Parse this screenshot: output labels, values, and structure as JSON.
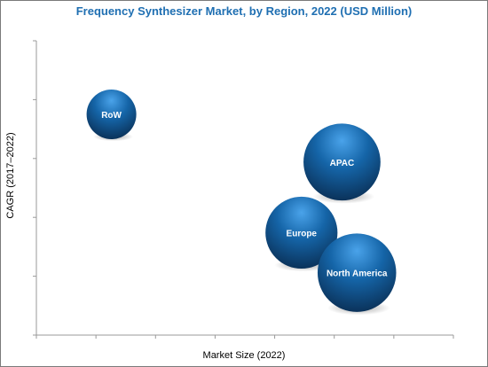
{
  "chart_data": {
    "type": "bubble",
    "title": "Frequency Synthesizer Market, by Region, 2022 (USD Million)",
    "xlabel": "Market Size (2022)",
    "ylabel": "CAGR (2017–2022)",
    "xlim": [
      0,
      7
    ],
    "ylim": [
      0,
      5
    ],
    "grid": false,
    "axis_values_shown": false,
    "colors": {
      "bubble_light": "#4aa3ea",
      "bubble_mid": "#1565a8",
      "bubble_dark": "#0a2f55",
      "title": "#1f6fb2"
    },
    "points": [
      {
        "label": "RoW",
        "x": 1.26,
        "y": 3.75,
        "size": 1.0
      },
      {
        "label": "APAC",
        "x": 5.13,
        "y": 2.94,
        "size": 2.4
      },
      {
        "label": "Europe",
        "x": 4.45,
        "y": 1.74,
        "size": 2.1
      },
      {
        "label": "North America",
        "x": 5.38,
        "y": 1.06,
        "size": 2.5
      }
    ]
  }
}
